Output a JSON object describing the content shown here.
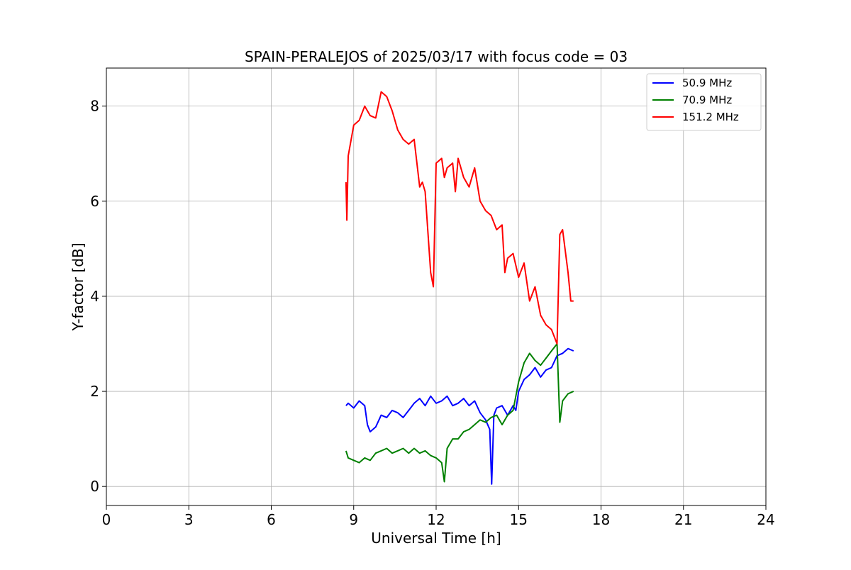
{
  "chart_data": {
    "type": "line",
    "title": "SPAIN-PERALEJOS of 2025/03/17 with focus code = 03",
    "xlabel": "Universal Time [h]",
    "ylabel": "Y-factor [dB]",
    "xlim": [
      0,
      24
    ],
    "ylim": [
      -0.4,
      8.8
    ],
    "xticks": [
      0,
      3,
      6,
      9,
      12,
      15,
      18,
      21,
      24
    ],
    "yticks": [
      0,
      2,
      4,
      6,
      8
    ],
    "xtick_labels": [
      "0",
      "3",
      "6",
      "9",
      "12",
      "15",
      "18",
      "21",
      "24"
    ],
    "ytick_labels": [
      "0",
      "2",
      "4",
      "6",
      "8"
    ],
    "grid": true,
    "legend_position": "top-right",
    "series": [
      {
        "name": " 50.9 MHz",
        "color": "#0000ff",
        "x": [
          8.72,
          8.8,
          9.0,
          9.2,
          9.4,
          9.5,
          9.6,
          9.8,
          10.0,
          10.2,
          10.4,
          10.6,
          10.8,
          11.0,
          11.2,
          11.4,
          11.6,
          11.8,
          12.0,
          12.2,
          12.4,
          12.6,
          12.8,
          13.0,
          13.2,
          13.4,
          13.6,
          13.8,
          13.95,
          14.02,
          14.1,
          14.2,
          14.4,
          14.6,
          14.8,
          14.9,
          15.0,
          15.2,
          15.4,
          15.6,
          15.8,
          16.0,
          16.2,
          16.4,
          16.6,
          16.8,
          17.0
        ],
        "values": [
          1.7,
          1.75,
          1.65,
          1.8,
          1.7,
          1.3,
          1.15,
          1.25,
          1.5,
          1.45,
          1.6,
          1.55,
          1.45,
          1.6,
          1.75,
          1.85,
          1.7,
          1.9,
          1.75,
          1.8,
          1.9,
          1.7,
          1.75,
          1.85,
          1.7,
          1.8,
          1.55,
          1.4,
          1.2,
          0.05,
          1.5,
          1.65,
          1.7,
          1.5,
          1.7,
          1.6,
          2.0,
          2.25,
          2.35,
          2.5,
          2.3,
          2.45,
          2.5,
          2.75,
          2.8,
          2.9,
          2.85
        ]
      },
      {
        "name": " 70.9 MHz",
        "color": "#008000",
        "x": [
          8.72,
          8.8,
          9.0,
          9.2,
          9.4,
          9.6,
          9.8,
          10.0,
          10.2,
          10.4,
          10.6,
          10.8,
          11.0,
          11.2,
          11.4,
          11.6,
          11.8,
          12.0,
          12.2,
          12.3,
          12.4,
          12.6,
          12.8,
          13.0,
          13.2,
          13.4,
          13.6,
          13.8,
          14.0,
          14.2,
          14.4,
          14.6,
          14.8,
          15.0,
          15.2,
          15.4,
          15.6,
          15.8,
          16.0,
          16.2,
          16.4,
          16.5,
          16.6,
          16.8,
          17.0
        ],
        "values": [
          0.75,
          0.6,
          0.55,
          0.5,
          0.6,
          0.55,
          0.7,
          0.75,
          0.8,
          0.7,
          0.75,
          0.8,
          0.7,
          0.8,
          0.7,
          0.75,
          0.65,
          0.6,
          0.5,
          0.1,
          0.8,
          1.0,
          1.0,
          1.15,
          1.2,
          1.3,
          1.4,
          1.35,
          1.45,
          1.5,
          1.3,
          1.5,
          1.6,
          2.2,
          2.6,
          2.8,
          2.65,
          2.55,
          2.7,
          2.85,
          3.0,
          1.35,
          1.8,
          1.95,
          2.0
        ]
      },
      {
        "name": " 151.2 MHz",
        "color": "#ff0000",
        "x": [
          8.72,
          8.75,
          8.8,
          9.0,
          9.2,
          9.4,
          9.6,
          9.8,
          10.0,
          10.2,
          10.4,
          10.6,
          10.8,
          11.0,
          11.2,
          11.4,
          11.5,
          11.6,
          11.8,
          11.9,
          12.0,
          12.2,
          12.3,
          12.4,
          12.6,
          12.7,
          12.8,
          13.0,
          13.2,
          13.4,
          13.6,
          13.8,
          14.0,
          14.2,
          14.4,
          14.5,
          14.6,
          14.8,
          15.0,
          15.2,
          15.4,
          15.6,
          15.8,
          16.0,
          16.2,
          16.4,
          16.5,
          16.6,
          16.8,
          16.9,
          17.0
        ],
        "values": [
          6.4,
          5.6,
          6.95,
          7.6,
          7.7,
          8.0,
          7.8,
          7.75,
          8.3,
          8.2,
          7.9,
          7.5,
          7.3,
          7.2,
          7.3,
          6.3,
          6.4,
          6.2,
          4.5,
          4.2,
          6.8,
          6.9,
          6.5,
          6.7,
          6.8,
          6.2,
          6.9,
          6.5,
          6.3,
          6.7,
          6.0,
          5.8,
          5.7,
          5.4,
          5.5,
          4.5,
          4.8,
          4.9,
          4.4,
          4.7,
          3.9,
          4.2,
          3.6,
          3.4,
          3.3,
          3.0,
          5.3,
          5.4,
          4.5,
          3.9,
          3.9
        ]
      }
    ]
  }
}
